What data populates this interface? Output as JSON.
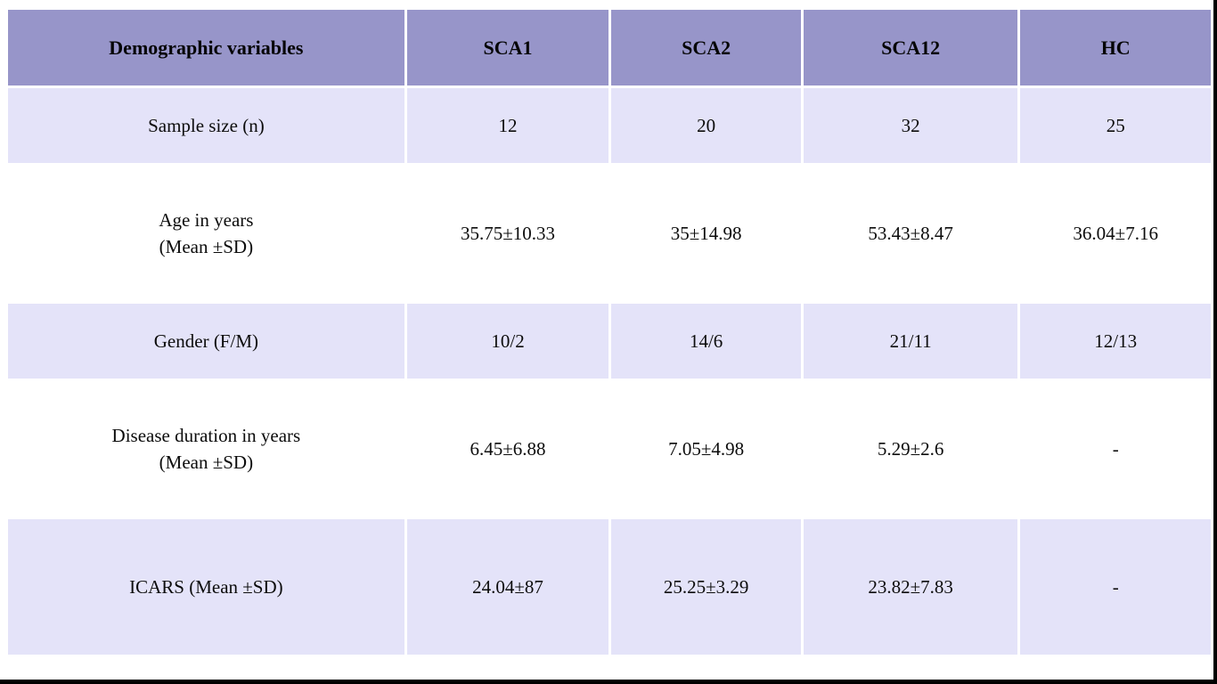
{
  "table": {
    "header": [
      "Demographic variables",
      "SCA1",
      "SCA2",
      "SCA12",
      "HC"
    ],
    "rows": [
      {
        "label": "Sample size (n)",
        "values": [
          "12",
          "20",
          "32",
          "25"
        ]
      },
      {
        "label": "Age in years\n(Mean ±SD)",
        "values": [
          "35.75±10.33",
          "35±14.98",
          "53.43±8.47",
          "36.04±7.16"
        ]
      },
      {
        "label": "Gender (F/M)",
        "values": [
          "10/2",
          "14/6",
          "21/11",
          "12/13"
        ]
      },
      {
        "label": "Disease duration in years\n(Mean ±SD)",
        "values": [
          "6.45±6.88",
          "7.05±4.98",
          "5.29±2.6",
          "-"
        ]
      },
      {
        "label": "ICARS (Mean ±SD)",
        "values": [
          "24.04±87",
          "25.25±3.29",
          "23.82±7.83",
          "-"
        ]
      }
    ]
  },
  "colors": {
    "header_bg": "#9795c9",
    "shaded_row_bg": "#e4e3f9",
    "page_bg": "#ffffff",
    "frame_color": "#000000",
    "text_color": "#0c0c0c"
  }
}
